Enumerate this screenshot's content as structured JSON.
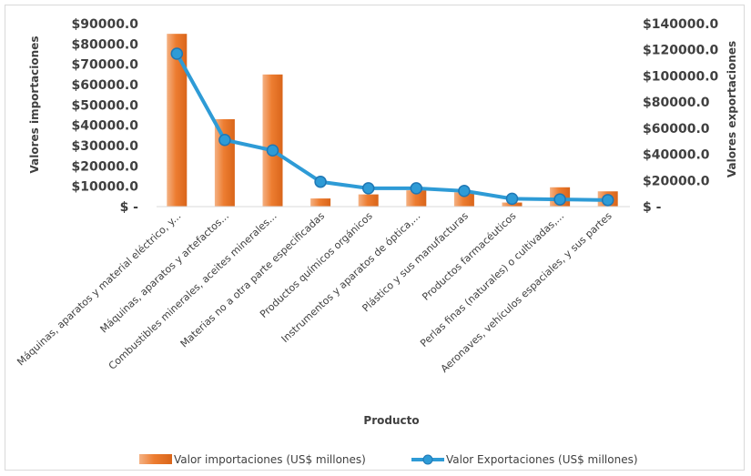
{
  "chart_data": {
    "type": "bar+line",
    "categories": [
      "Máquinas, aparatos y material eléctrico, y...",
      "Máquinas, aparatos y artefactos...",
      "Combustibles minerales, aceites minerales...",
      "Materias no a otra parte especificadas",
      "Productos químicos orgánicos",
      "Instrumentos y aparatos de óptica,...",
      "Plástico y sus manufacturas",
      "Productos farmacéuticos",
      "Perlas finas (naturales) o cultivadas,...",
      "Aeronaves, vehículos espaciales, y sus partes"
    ],
    "series": [
      {
        "name": "Valor importaciones (US$ millones)",
        "type": "bar",
        "axis": "left",
        "color": "#ED7D31",
        "values": [
          85000,
          43000,
          65000,
          4000,
          6000,
          8000,
          7000,
          2000,
          9500,
          7500
        ]
      },
      {
        "name": "Valor Exportaciones (US$ millones)",
        "type": "line",
        "axis": "right",
        "color": "#2E9BD6",
        "values": [
          117000,
          51000,
          43000,
          19000,
          14000,
          14000,
          12000,
          6000,
          5500,
          5000
        ]
      }
    ],
    "xlabel": "Producto",
    "ylabel_left": "Valores importaciones",
    "ylabel_right": "Valores exportaciones",
    "ylim_left": [
      0,
      90000
    ],
    "ylim_right": [
      0,
      140000
    ],
    "yticks_left": [
      "$ -",
      "$10000.0",
      "$20000.0",
      "$30000.0",
      "$40000.0",
      "$50000.0",
      "$60000.0",
      "$70000.0",
      "$80000.0",
      "$90000.0"
    ],
    "yticks_right": [
      "$ -",
      "$20000.0",
      "$40000.0",
      "$60000.0",
      "$80000.0",
      "$100000.0",
      "$120000.0",
      "$140000.0"
    ],
    "grid": false,
    "legend_position": "bottom"
  }
}
